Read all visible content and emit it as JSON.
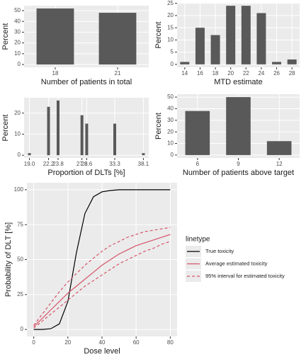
{
  "chart_data": [
    {
      "type": "bar",
      "x_label": "Number of patients in total",
      "y_label": "Percent",
      "categories": [
        "18",
        "21"
      ],
      "values": [
        52,
        48
      ],
      "color": "#595959",
      "ylim": [
        -2.6,
        54.6
      ],
      "yticks": [
        0,
        10,
        20,
        30,
        40,
        50
      ],
      "grid": true
    },
    {
      "type": "bar",
      "x_label": "MTD estimate",
      "y_label": "Percent",
      "categories": [
        "14",
        "16",
        "18",
        "20",
        "22",
        "24",
        "26",
        "28"
      ],
      "values": [
        1,
        15,
        12,
        24,
        24,
        21,
        1,
        2
      ],
      "color": "#595959",
      "ylim": [
        -1.2,
        25.2
      ],
      "yticks": [
        0,
        5,
        10,
        15,
        20,
        25
      ],
      "grid": true
    },
    {
      "type": "bar",
      "x_label": "Proportion of DLTs [%]",
      "y_label": "Percent",
      "x": [
        19,
        22.2,
        23.8,
        27.8,
        28.6,
        33.3,
        38.1
      ],
      "values": [
        1,
        23,
        26,
        19,
        15,
        15,
        1
      ],
      "color": "#595959",
      "xlim": [
        18.1,
        39
      ],
      "xticks": [
        {
          "value": 19,
          "label": "19.0"
        },
        22.2,
        23.8,
        27.8,
        28.6,
        33.3,
        38.1
      ],
      "ylim": [
        -1.3,
        27.3
      ],
      "yticks": [
        0,
        10,
        20
      ],
      "grid": true
    },
    {
      "type": "bar",
      "x_label": "Number of patients above target",
      "y_label": "Percent",
      "categories": [
        "6",
        "9",
        "12"
      ],
      "values": [
        38,
        50,
        12
      ],
      "color": "#595959",
      "ylim": [
        -2.5,
        52.5
      ],
      "yticks": [
        0,
        10,
        20,
        30,
        40,
        50
      ],
      "grid": true
    },
    {
      "type": "line",
      "x_label": "Dose level",
      "y_label": "Probability of DLT [%]",
      "legend_title": "linetype",
      "x": [
        0,
        5,
        10,
        15,
        20,
        25,
        30,
        35,
        40,
        45,
        50,
        55,
        60,
        65,
        70,
        75,
        80
      ],
      "series": [
        {
          "name": "True toxicity",
          "color": "#000000",
          "dashed": false,
          "values": [
            0,
            0,
            0.5,
            4,
            20,
            55,
            83,
            95,
            98.5,
            99.5,
            100,
            100,
            100,
            100,
            100,
            100,
            100
          ]
        },
        {
          "name": "Average estimated toxicity",
          "color": "#d6546a",
          "dashed": false,
          "values": [
            2,
            8,
            14,
            20,
            26,
            31,
            36,
            41,
            46,
            50,
            54,
            57,
            60,
            62,
            64,
            66,
            68
          ]
        },
        {
          "name": "95% interval for estimated toxicity",
          "color": "#d6546a",
          "dashed": true,
          "values": [
            3,
            11,
            19,
            27,
            34,
            40,
            46,
            51,
            56,
            60,
            63,
            66,
            68,
            70,
            71,
            72,
            73
          ],
          "values_lower": [
            1,
            6,
            11,
            16,
            21,
            26,
            31,
            35,
            39,
            43,
            47,
            50,
            53,
            56,
            58,
            61,
            63
          ]
        }
      ],
      "xlim": [
        -4,
        84
      ],
      "xticks": [
        0,
        20,
        40,
        60,
        80
      ],
      "ylim": [
        -5,
        105
      ],
      "yticks": [
        0,
        25,
        50,
        75,
        100
      ],
      "grid": true
    }
  ]
}
